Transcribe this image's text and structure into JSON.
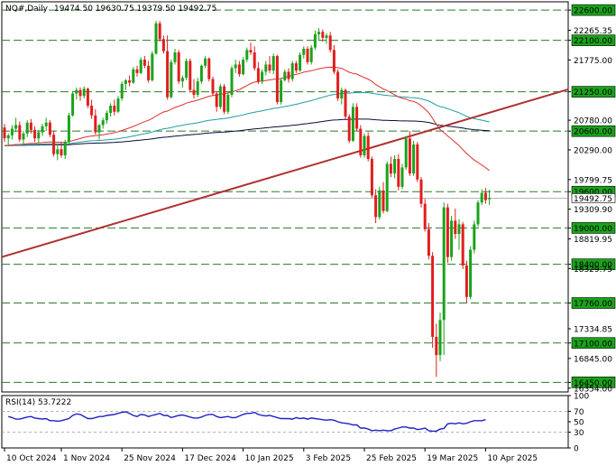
{
  "header": {
    "symbol": "NQ#,Daily",
    "ohlc": "19474.50 19630.75 19379.50 19492.75"
  },
  "rsi_header": "RSI(14) 53.7222",
  "chart_data": [
    {
      "type": "candlestick",
      "title": "NQ#,Daily",
      "ylim": [
        16291,
        22736
      ],
      "y_ticks": [
        "22600.00",
        "22265.35",
        "22100.00",
        "21775.00",
        "21250.00",
        "20780.00",
        "20600.00",
        "20290.00",
        "19799.75",
        "19600.00",
        "19309.90",
        "19000.00",
        "18819.95",
        "18400.00",
        "18329.75",
        "17760.00",
        "17334.85",
        "17100.00",
        "16845.00",
        "16450.00",
        "16354.00"
      ],
      "highlighted_levels": [
        22600,
        22100,
        21250,
        20600,
        19600,
        19000,
        18400,
        17760,
        17100,
        16450
      ],
      "current_price": "19492.75",
      "x_labels": [
        "10 Oct 2024",
        "1 Nov 2024",
        "25 Nov 2024",
        "17 Dec 2024",
        "10 Jan 2025",
        "3 Feb 2025",
        "25 Feb 2025",
        "19 Mar 2025",
        "10 Apr 2025"
      ],
      "ma_colors": {
        "ma_fast": "#e03030",
        "ma_mid": "#1ea0a0",
        "ma_slow": "#0a0a3a"
      },
      "trendline_color": "#b03030",
      "up_color": "#1aa31a",
      "down_color": "#e01e1e",
      "candles": [
        {
          "o": 20660,
          "h": 20720,
          "l": 20420,
          "c": 20480
        },
        {
          "o": 20480,
          "h": 20560,
          "l": 20360,
          "c": 20530
        },
        {
          "o": 20530,
          "h": 20700,
          "l": 20460,
          "c": 20640
        },
        {
          "o": 20640,
          "h": 20820,
          "l": 20580,
          "c": 20700
        },
        {
          "o": 20700,
          "h": 20760,
          "l": 20420,
          "c": 20460
        },
        {
          "o": 20460,
          "h": 20600,
          "l": 20380,
          "c": 20560
        },
        {
          "o": 20560,
          "h": 20780,
          "l": 20500,
          "c": 20740
        },
        {
          "o": 20740,
          "h": 20800,
          "l": 20560,
          "c": 20620
        },
        {
          "o": 20620,
          "h": 20680,
          "l": 20420,
          "c": 20480
        },
        {
          "o": 20480,
          "h": 20620,
          "l": 20400,
          "c": 20580
        },
        {
          "o": 20580,
          "h": 20720,
          "l": 20520,
          "c": 20680
        },
        {
          "o": 20680,
          "h": 20820,
          "l": 20600,
          "c": 20740
        },
        {
          "o": 20740,
          "h": 20780,
          "l": 20500,
          "c": 20540
        },
        {
          "o": 20540,
          "h": 20600,
          "l": 20180,
          "c": 20220
        },
        {
          "o": 20220,
          "h": 20380,
          "l": 20120,
          "c": 20300
        },
        {
          "o": 20300,
          "h": 20420,
          "l": 20160,
          "c": 20200
        },
        {
          "o": 20200,
          "h": 20460,
          "l": 20140,
          "c": 20420
        },
        {
          "o": 20420,
          "h": 20900,
          "l": 20400,
          "c": 20860
        },
        {
          "o": 20860,
          "h": 21260,
          "l": 20840,
          "c": 21220
        },
        {
          "o": 21220,
          "h": 21320,
          "l": 21120,
          "c": 21280
        },
        {
          "o": 21280,
          "h": 21320,
          "l": 21100,
          "c": 21180
        },
        {
          "o": 21180,
          "h": 21340,
          "l": 21140,
          "c": 21300
        },
        {
          "o": 21300,
          "h": 21320,
          "l": 20980,
          "c": 21020
        },
        {
          "o": 21020,
          "h": 21120,
          "l": 20800,
          "c": 20860
        },
        {
          "o": 20860,
          "h": 20960,
          "l": 20540,
          "c": 20580
        },
        {
          "o": 20580,
          "h": 20720,
          "l": 20460,
          "c": 20700
        },
        {
          "o": 20700,
          "h": 20820,
          "l": 20640,
          "c": 20780
        },
        {
          "o": 20780,
          "h": 20940,
          "l": 20720,
          "c": 20900
        },
        {
          "o": 20900,
          "h": 21060,
          "l": 20840,
          "c": 21020
        },
        {
          "o": 21020,
          "h": 21120,
          "l": 20860,
          "c": 20920
        },
        {
          "o": 20920,
          "h": 21180,
          "l": 20900,
          "c": 21140
        },
        {
          "o": 21140,
          "h": 21420,
          "l": 21100,
          "c": 21380
        },
        {
          "o": 21380,
          "h": 21460,
          "l": 21280,
          "c": 21440
        },
        {
          "o": 21440,
          "h": 21520,
          "l": 21340,
          "c": 21400
        },
        {
          "o": 21400,
          "h": 21660,
          "l": 21380,
          "c": 21620
        },
        {
          "o": 21620,
          "h": 21680,
          "l": 21500,
          "c": 21560
        },
        {
          "o": 21560,
          "h": 21820,
          "l": 21540,
          "c": 21780
        },
        {
          "o": 21780,
          "h": 21840,
          "l": 21640,
          "c": 21680
        },
        {
          "o": 21680,
          "h": 21760,
          "l": 21400,
          "c": 21440
        },
        {
          "o": 21440,
          "h": 21920,
          "l": 21420,
          "c": 21880
        },
        {
          "o": 21880,
          "h": 22420,
          "l": 21860,
          "c": 22380
        },
        {
          "o": 22380,
          "h": 22420,
          "l": 22080,
          "c": 22120
        },
        {
          "o": 22120,
          "h": 22180,
          "l": 21880,
          "c": 21920
        },
        {
          "o": 21920,
          "h": 22180,
          "l": 21120,
          "c": 21160
        },
        {
          "o": 21160,
          "h": 21780,
          "l": 21140,
          "c": 21740
        },
        {
          "o": 21740,
          "h": 21960,
          "l": 21700,
          "c": 21900
        },
        {
          "o": 21900,
          "h": 21940,
          "l": 21380,
          "c": 21420
        },
        {
          "o": 21420,
          "h": 21520,
          "l": 21320,
          "c": 21480
        },
        {
          "o": 21480,
          "h": 21800,
          "l": 21440,
          "c": 21760
        },
        {
          "o": 21760,
          "h": 21800,
          "l": 21240,
          "c": 21280
        },
        {
          "o": 21280,
          "h": 21460,
          "l": 21140,
          "c": 21200
        },
        {
          "o": 21200,
          "h": 21480,
          "l": 21160,
          "c": 21420
        },
        {
          "o": 21420,
          "h": 21700,
          "l": 21380,
          "c": 21680
        },
        {
          "o": 21680,
          "h": 21840,
          "l": 21640,
          "c": 21800
        },
        {
          "o": 21800,
          "h": 21820,
          "l": 21420,
          "c": 21460
        },
        {
          "o": 21460,
          "h": 21500,
          "l": 21180,
          "c": 21220
        },
        {
          "o": 21220,
          "h": 21260,
          "l": 20920,
          "c": 21000
        },
        {
          "o": 21000,
          "h": 21380,
          "l": 20960,
          "c": 21340
        },
        {
          "o": 21340,
          "h": 21380,
          "l": 20880,
          "c": 20920
        },
        {
          "o": 20920,
          "h": 21240,
          "l": 20880,
          "c": 21200
        },
        {
          "o": 21200,
          "h": 21680,
          "l": 21160,
          "c": 21640
        },
        {
          "o": 21640,
          "h": 21780,
          "l": 21560,
          "c": 21700
        },
        {
          "o": 21700,
          "h": 21760,
          "l": 21500,
          "c": 21540
        },
        {
          "o": 21540,
          "h": 21820,
          "l": 21520,
          "c": 21780
        },
        {
          "o": 21780,
          "h": 21980,
          "l": 21740,
          "c": 21940
        },
        {
          "o": 21940,
          "h": 22060,
          "l": 21860,
          "c": 21900
        },
        {
          "o": 21900,
          "h": 22000,
          "l": 21600,
          "c": 21640
        },
        {
          "o": 21640,
          "h": 21740,
          "l": 21380,
          "c": 21420
        },
        {
          "o": 21420,
          "h": 21620,
          "l": 21380,
          "c": 21580
        },
        {
          "o": 21580,
          "h": 21760,
          "l": 21520,
          "c": 21700
        },
        {
          "o": 21700,
          "h": 21840,
          "l": 21560,
          "c": 21600
        },
        {
          "o": 21600,
          "h": 21880,
          "l": 21540,
          "c": 21840
        },
        {
          "o": 21840,
          "h": 21860,
          "l": 21040,
          "c": 21080
        },
        {
          "o": 21080,
          "h": 21480,
          "l": 21040,
          "c": 21440
        },
        {
          "o": 21440,
          "h": 21620,
          "l": 21420,
          "c": 21580
        },
        {
          "o": 21580,
          "h": 21640,
          "l": 21400,
          "c": 21460
        },
        {
          "o": 21460,
          "h": 21760,
          "l": 21420,
          "c": 21720
        },
        {
          "o": 21720,
          "h": 21760,
          "l": 21560,
          "c": 21600
        },
        {
          "o": 21600,
          "h": 21900,
          "l": 21580,
          "c": 21860
        },
        {
          "o": 21860,
          "h": 22000,
          "l": 21800,
          "c": 21960
        },
        {
          "o": 21960,
          "h": 22000,
          "l": 21700,
          "c": 21740
        },
        {
          "o": 21740,
          "h": 22020,
          "l": 21700,
          "c": 21980
        },
        {
          "o": 21980,
          "h": 22260,
          "l": 21940,
          "c": 22200
        },
        {
          "o": 22200,
          "h": 22300,
          "l": 22100,
          "c": 22240
        },
        {
          "o": 22240,
          "h": 22280,
          "l": 22080,
          "c": 22140
        },
        {
          "o": 22140,
          "h": 22220,
          "l": 22040,
          "c": 22180
        },
        {
          "o": 22180,
          "h": 22240,
          "l": 21900,
          "c": 21940
        },
        {
          "o": 21940,
          "h": 22020,
          "l": 21540,
          "c": 21580
        },
        {
          "o": 21580,
          "h": 21620,
          "l": 21100,
          "c": 21140
        },
        {
          "o": 21140,
          "h": 21320,
          "l": 21040,
          "c": 21280
        },
        {
          "o": 21280,
          "h": 21300,
          "l": 20800,
          "c": 20840
        },
        {
          "o": 20840,
          "h": 20880,
          "l": 20400,
          "c": 20440
        },
        {
          "o": 20440,
          "h": 21060,
          "l": 20420,
          "c": 21000
        },
        {
          "o": 21000,
          "h": 21060,
          "l": 20600,
          "c": 20640
        },
        {
          "o": 20640,
          "h": 20700,
          "l": 20160,
          "c": 20200
        },
        {
          "o": 20200,
          "h": 20560,
          "l": 20160,
          "c": 20520
        },
        {
          "o": 20520,
          "h": 20580,
          "l": 20100,
          "c": 20140
        },
        {
          "o": 20140,
          "h": 20180,
          "l": 19500,
          "c": 19540
        },
        {
          "o": 19540,
          "h": 19640,
          "l": 19080,
          "c": 19180
        },
        {
          "o": 19180,
          "h": 19680,
          "l": 19140,
          "c": 19620
        },
        {
          "o": 19620,
          "h": 19760,
          "l": 19240,
          "c": 19280
        },
        {
          "o": 19280,
          "h": 20100,
          "l": 19260,
          "c": 20060
        },
        {
          "o": 20060,
          "h": 20180,
          "l": 19840,
          "c": 19900
        },
        {
          "o": 19900,
          "h": 20200,
          "l": 19820,
          "c": 20140
        },
        {
          "o": 20140,
          "h": 20220,
          "l": 19620,
          "c": 19680
        },
        {
          "o": 19680,
          "h": 20060,
          "l": 19640,
          "c": 20000
        },
        {
          "o": 20000,
          "h": 20520,
          "l": 19960,
          "c": 20480
        },
        {
          "o": 20480,
          "h": 20600,
          "l": 19860,
          "c": 19900
        },
        {
          "o": 19900,
          "h": 20440,
          "l": 19860,
          "c": 20380
        },
        {
          "o": 20380,
          "h": 20420,
          "l": 19760,
          "c": 19800
        },
        {
          "o": 19800,
          "h": 19840,
          "l": 19340,
          "c": 19400
        },
        {
          "o": 19400,
          "h": 19480,
          "l": 18940,
          "c": 18980
        },
        {
          "o": 18980,
          "h": 19080,
          "l": 18480,
          "c": 18540
        },
        {
          "o": 18540,
          "h": 18600,
          "l": 17020,
          "c": 17200
        },
        {
          "o": 17200,
          "h": 17420,
          "l": 16540,
          "c": 16900
        },
        {
          "o": 16900,
          "h": 17600,
          "l": 16800,
          "c": 17480
        },
        {
          "o": 17480,
          "h": 19420,
          "l": 16900,
          "c": 19340
        },
        {
          "o": 19340,
          "h": 19400,
          "l": 18420,
          "c": 18520
        },
        {
          "o": 18520,
          "h": 19200,
          "l": 18460,
          "c": 19120
        },
        {
          "o": 19120,
          "h": 19320,
          "l": 18820,
          "c": 18900
        },
        {
          "o": 18900,
          "h": 19140,
          "l": 18640,
          "c": 19060
        },
        {
          "o": 19060,
          "h": 19100,
          "l": 18320,
          "c": 18380
        },
        {
          "o": 18380,
          "h": 18460,
          "l": 17760,
          "c": 17860
        },
        {
          "o": 17860,
          "h": 18700,
          "l": 17820,
          "c": 18640
        },
        {
          "o": 18640,
          "h": 19120,
          "l": 18580,
          "c": 19060
        },
        {
          "o": 19060,
          "h": 19460,
          "l": 19020,
          "c": 19420
        },
        {
          "o": 19420,
          "h": 19640,
          "l": 19380,
          "c": 19580
        },
        {
          "o": 19580,
          "h": 19660,
          "l": 19400,
          "c": 19460
        },
        {
          "o": 19474.5,
          "h": 19630.75,
          "l": 19379.5,
          "c": 19492.75
        }
      ],
      "trendline": {
        "start": {
          "i": 0,
          "v": 18520
        },
        "end": {
          "i": 150,
          "v": 21290
        }
      }
    },
    {
      "type": "line",
      "title": "RSI(14) 53.7222",
      "ylim": [
        0,
        100
      ],
      "y_ticks": [
        "100",
        "70",
        "50",
        "30",
        "0"
      ],
      "levels": [
        70,
        30
      ],
      "series": [
        {
          "name": "RSI(14)",
          "color": "#2020c8",
          "values": [
            60,
            58,
            55,
            55,
            57,
            59,
            60,
            57,
            56,
            55,
            56,
            52,
            52,
            51,
            52,
            54,
            56,
            62,
            65,
            64,
            60,
            56,
            56,
            58,
            60,
            60,
            62,
            63,
            64,
            66,
            68,
            69,
            66,
            62,
            60,
            64,
            63,
            60,
            62,
            64,
            66,
            62,
            62,
            58,
            60,
            62,
            63,
            61,
            59,
            57,
            57,
            59,
            62,
            64,
            64,
            60,
            58,
            59,
            60,
            58,
            58,
            61,
            64,
            66,
            66,
            68,
            64,
            62,
            61,
            62,
            60,
            58,
            56,
            56,
            56,
            55,
            58,
            56,
            57,
            55,
            57,
            56,
            55,
            54,
            53,
            54,
            53,
            50,
            48,
            47,
            46,
            44,
            44,
            38,
            38,
            36,
            33,
            34,
            33,
            34,
            33,
            33,
            36,
            38,
            40,
            40,
            38,
            38,
            35,
            36,
            38,
            33,
            32,
            32,
            36,
            37,
            46,
            47,
            46,
            48,
            46,
            47,
            50,
            52,
            52,
            52,
            54
          ]
        }
      ]
    }
  ]
}
